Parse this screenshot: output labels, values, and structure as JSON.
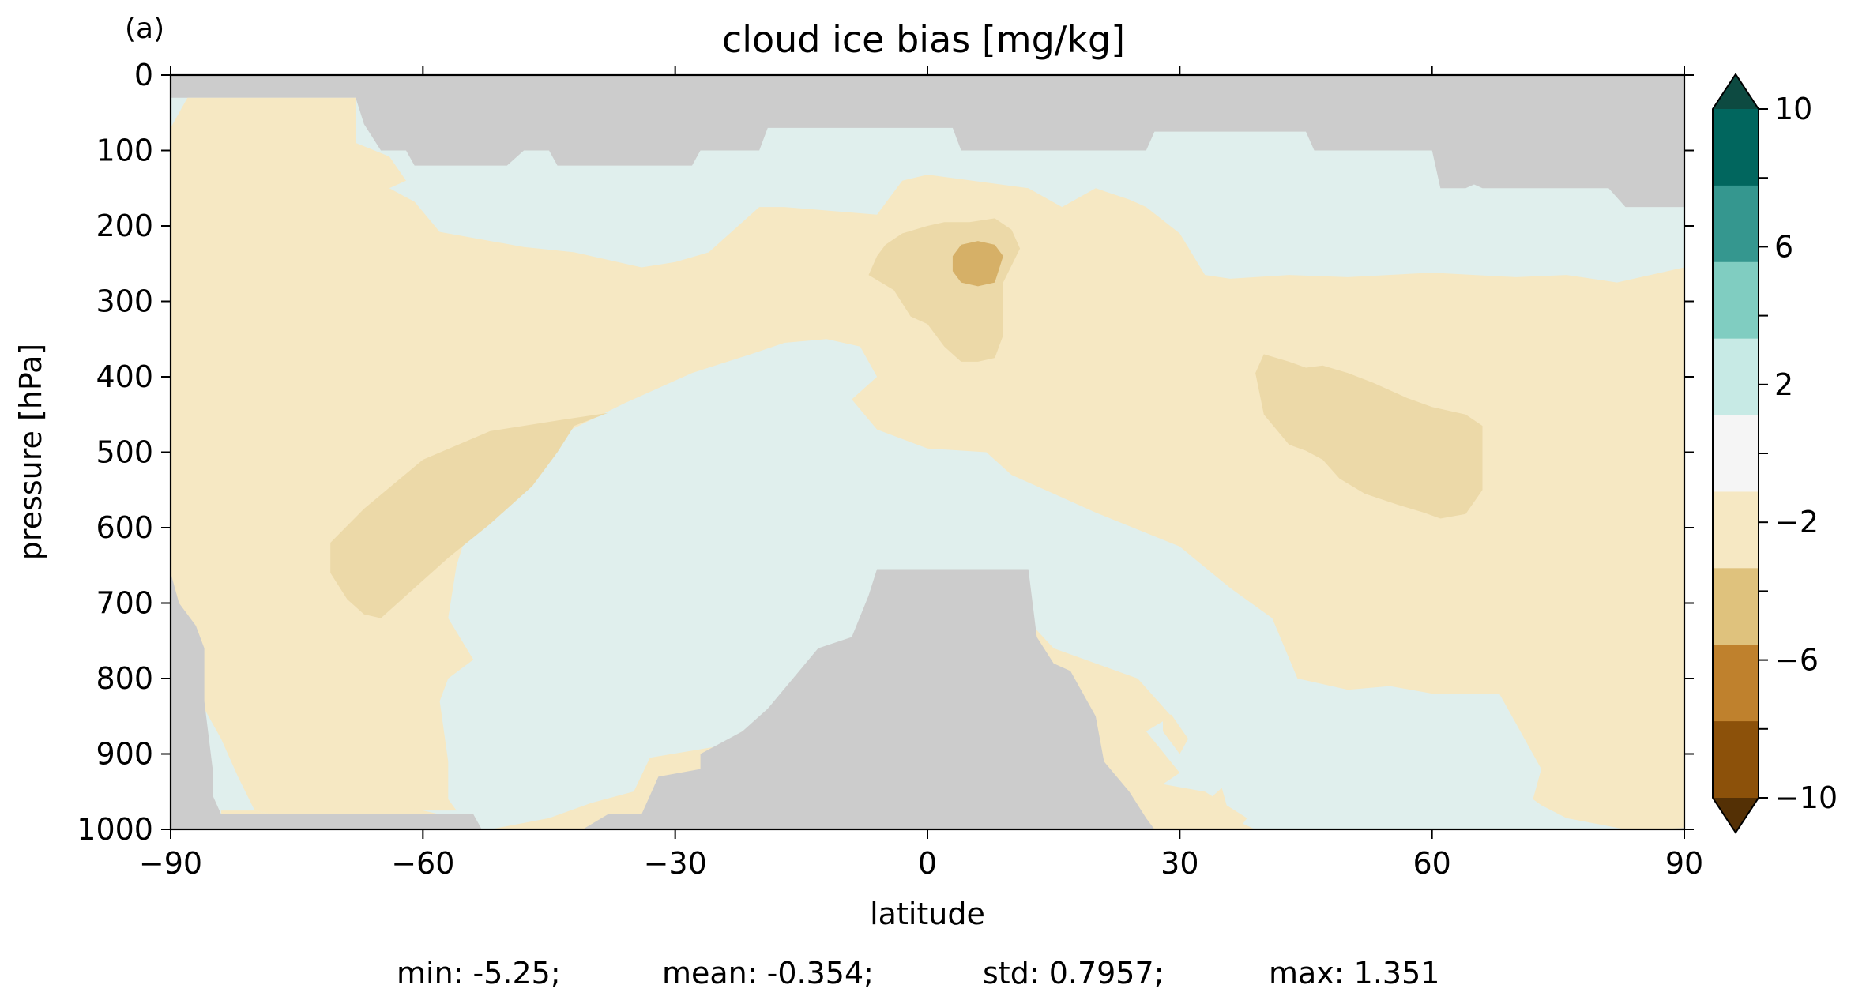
{
  "panel_label": "(a)",
  "chart_data": {
    "type": "contourf",
    "title": "cloud ice bias [mg/kg]",
    "xlabel": "latitude",
    "ylabel": "pressure [hPa]",
    "xlim": [
      -90,
      90
    ],
    "ylim": [
      1000,
      0
    ],
    "x_ticks": [
      "−90",
      "−60",
      "−30",
      "0",
      "30",
      "60",
      "90"
    ],
    "y_ticks": [
      "0",
      "100",
      "200",
      "300",
      "400",
      "500",
      "600",
      "700",
      "800",
      "900",
      "1000"
    ],
    "colorbar": {
      "levels": [
        -10,
        -8,
        -6,
        -4,
        -2,
        0,
        2,
        4,
        6,
        8,
        10
      ],
      "tick_labels": [
        "10",
        "6",
        "2",
        "−2",
        "−6",
        "−10"
      ],
      "colors_top_to_bottom": [
        "#0d4a41",
        "#01665e",
        "#35978f",
        "#80cdc1",
        "#c7eae5",
        "#f5f5f5",
        "#f6e8c3",
        "#dfc27d",
        "#bf812d",
        "#8c510a",
        "#543005"
      ],
      "extend": "both"
    },
    "missing_color": "#cccccc",
    "regions": [
      {
        "name": "missing-top",
        "color": "#cccccc",
        "points": [
          [
            -90,
            0
          ],
          [
            90,
            0
          ],
          [
            90,
            175
          ],
          [
            83,
            175
          ],
          [
            81,
            150
          ],
          [
            66,
            150
          ],
          [
            65,
            145
          ],
          [
            64,
            150
          ],
          [
            61,
            150
          ],
          [
            60,
            100
          ],
          [
            54,
            100
          ],
          [
            53,
            100
          ],
          [
            46,
            100
          ],
          [
            45,
            75
          ],
          [
            27,
            75
          ],
          [
            26,
            100
          ],
          [
            4,
            100
          ],
          [
            3,
            70
          ],
          [
            -19,
            70
          ],
          [
            -20,
            100
          ],
          [
            -27,
            100
          ],
          [
            -28,
            120
          ],
          [
            -44,
            120
          ],
          [
            -45,
            100
          ],
          [
            -48,
            100
          ],
          [
            -50,
            120
          ],
          [
            -61,
            120
          ],
          [
            -62,
            100
          ],
          [
            -65,
            100
          ],
          [
            -67,
            65
          ],
          [
            -68,
            30
          ],
          [
            -78,
            30
          ],
          [
            -89,
            30
          ],
          [
            -90,
            30
          ]
        ]
      },
      {
        "name": "negative-main",
        "color": "#f6e8c3",
        "points": [
          [
            -90,
            70
          ],
          [
            -88,
            30
          ],
          [
            -68,
            30
          ],
          [
            -68,
            90
          ],
          [
            -64,
            108
          ],
          [
            -62,
            140
          ],
          [
            -64,
            150
          ],
          [
            -61,
            168
          ],
          [
            -58,
            208
          ],
          [
            -48,
            228
          ],
          [
            -42,
            235
          ],
          [
            -34,
            255
          ],
          [
            -30,
            248
          ],
          [
            -26,
            235
          ],
          [
            -24,
            215
          ],
          [
            -20,
            175
          ],
          [
            -17,
            175
          ],
          [
            -6,
            185
          ],
          [
            -3,
            140
          ],
          [
            0,
            132
          ],
          [
            12,
            150
          ],
          [
            16,
            175
          ],
          [
            20,
            150
          ],
          [
            24,
            165
          ],
          [
            26,
            175
          ],
          [
            30,
            210
          ],
          [
            33,
            265
          ],
          [
            36,
            270
          ],
          [
            43,
            265
          ],
          [
            50,
            268
          ],
          [
            60,
            262
          ],
          [
            70,
            268
          ],
          [
            76,
            265
          ],
          [
            82,
            275
          ],
          [
            90,
            255
          ],
          [
            90,
            1000
          ],
          [
            83,
            1000
          ],
          [
            76,
            985
          ],
          [
            73,
            968
          ],
          [
            72,
            960
          ],
          [
            73,
            920
          ],
          [
            70,
            860
          ],
          [
            68,
            820
          ],
          [
            60,
            820
          ],
          [
            55,
            810
          ],
          [
            50,
            815
          ],
          [
            44,
            800
          ],
          [
            41,
            720
          ],
          [
            36,
            680
          ],
          [
            30,
            625
          ],
          [
            20,
            580
          ],
          [
            15,
            555
          ],
          [
            10,
            530
          ],
          [
            7,
            500
          ],
          [
            0,
            495
          ],
          [
            -6,
            470
          ],
          [
            -9,
            430
          ],
          [
            -6,
            400
          ],
          [
            -8,
            360
          ],
          [
            -12,
            350
          ],
          [
            -17,
            355
          ],
          [
            -21,
            370
          ],
          [
            -28,
            395
          ],
          [
            -36,
            435
          ],
          [
            -46,
            490
          ],
          [
            -54,
            580
          ],
          [
            -56,
            650
          ],
          [
            -57,
            720
          ],
          [
            -54,
            775
          ],
          [
            -57,
            800
          ],
          [
            -58,
            830
          ],
          [
            -57,
            910
          ],
          [
            -57,
            960
          ],
          [
            -56,
            975
          ],
          [
            -63,
            975
          ],
          [
            -72,
            980
          ],
          [
            -76,
            985
          ],
          [
            -80,
            975
          ],
          [
            -82,
            930
          ],
          [
            -84,
            880
          ],
          [
            -86,
            840
          ],
          [
            -88,
            720
          ],
          [
            -90,
            700
          ]
        ]
      },
      {
        "name": "negative-bottom-edge",
        "color": "#f6e8c3",
        "points": [
          [
            -84,
            975
          ],
          [
            -80,
            975
          ],
          [
            -76,
            985
          ],
          [
            -72,
            1000
          ],
          [
            -84,
            1000
          ]
        ]
      },
      {
        "name": "negative-lower-mid",
        "color": "#f6e8c3",
        "points": [
          [
            -52,
            1000
          ],
          [
            -45,
            985
          ],
          [
            -40,
            965
          ],
          [
            -35,
            950
          ],
          [
            -30,
            940
          ],
          [
            -25,
            900
          ],
          [
            -22,
            905
          ],
          [
            -21,
            870
          ],
          [
            -19,
            850
          ],
          [
            -15,
            900
          ],
          [
            -10,
            870
          ],
          [
            -8,
            850
          ],
          [
            -1,
            840
          ],
          [
            0,
            700
          ],
          [
            10,
            700
          ],
          [
            15,
            760
          ],
          [
            20,
            780
          ],
          [
            25,
            800
          ],
          [
            29,
            850
          ],
          [
            26,
            870
          ],
          [
            30,
            925
          ],
          [
            28,
            940
          ],
          [
            33,
            950
          ],
          [
            38,
            985
          ],
          [
            37,
            1000
          ],
          [
            -40,
            1000
          ]
        ]
      },
      {
        "name": "negative-lower-right",
        "color": "#f6e8c3",
        "points": [
          [
            33,
            1000
          ],
          [
            34,
            955
          ],
          [
            35,
            945
          ],
          [
            36,
            985
          ],
          [
            39,
            1000
          ]
        ]
      },
      {
        "name": "negative-small-blob",
        "color": "#f6e8c3",
        "points": [
          [
            28,
            848
          ],
          [
            29,
            848
          ],
          [
            31,
            880
          ],
          [
            30,
            900
          ],
          [
            28,
            870
          ]
        ]
      },
      {
        "name": "negative-bottom-left-2",
        "color": "#f6e8c3",
        "points": [
          [
            -75,
            865
          ],
          [
            -71,
            880
          ],
          [
            -72,
            930
          ],
          [
            -69,
            950
          ],
          [
            -60,
            975
          ],
          [
            -56,
            985
          ],
          [
            -62,
            1000
          ],
          [
            -75,
            1000
          ],
          [
            -76,
            960
          ],
          [
            -77,
            900
          ]
        ]
      },
      {
        "name": "negative-equatorial-lower",
        "color": "#f6e8c3",
        "points": [
          [
            -33,
            905
          ],
          [
            -25,
            890
          ],
          [
            -22,
            870
          ],
          [
            -18,
            860
          ],
          [
            -20,
            910
          ],
          [
            -26,
            960
          ],
          [
            -32,
            1000
          ],
          [
            -35,
            1000
          ],
          [
            -36,
            975
          ]
        ]
      },
      {
        "name": "neg2-southern",
        "color": "#ecd9a8",
        "points": [
          [
            -71,
            620
          ],
          [
            -67,
            575
          ],
          [
            -60,
            510
          ],
          [
            -52,
            472
          ],
          [
            -44,
            458
          ],
          [
            -38,
            448
          ],
          [
            -42,
            465
          ],
          [
            -44,
            500
          ],
          [
            -47,
            545
          ],
          [
            -52,
            595
          ],
          [
            -57,
            640
          ],
          [
            -61,
            680
          ],
          [
            -65,
            720
          ],
          [
            -67,
            715
          ],
          [
            -69,
            695
          ],
          [
            -71,
            660
          ]
        ]
      },
      {
        "name": "neg2-equatorial",
        "color": "#ecd9a8",
        "points": [
          [
            -5,
            225
          ],
          [
            -3,
            210
          ],
          [
            0,
            200
          ],
          [
            2,
            195
          ],
          [
            5,
            195
          ],
          [
            8,
            190
          ],
          [
            10,
            205
          ],
          [
            11,
            230
          ],
          [
            9,
            275
          ],
          [
            9,
            345
          ],
          [
            8,
            375
          ],
          [
            6,
            380
          ],
          [
            4,
            380
          ],
          [
            2,
            360
          ],
          [
            0,
            330
          ],
          [
            -2,
            320
          ],
          [
            -4,
            285
          ],
          [
            -7,
            265
          ],
          [
            -6,
            240
          ]
        ]
      },
      {
        "name": "neg2-northern",
        "color": "#ecd9a8",
        "points": [
          [
            39,
            395
          ],
          [
            40,
            370
          ],
          [
            43,
            380
          ],
          [
            45,
            388
          ],
          [
            47,
            385
          ],
          [
            50,
            395
          ],
          [
            53,
            408
          ],
          [
            57,
            428
          ],
          [
            60,
            440
          ],
          [
            64,
            450
          ],
          [
            66,
            465
          ],
          [
            66,
            550
          ],
          [
            64,
            582
          ],
          [
            61,
            588
          ],
          [
            59,
            580
          ],
          [
            56,
            570
          ],
          [
            52,
            555
          ],
          [
            49,
            535
          ],
          [
            47,
            510
          ],
          [
            45,
            498
          ],
          [
            43,
            490
          ],
          [
            40,
            450
          ]
        ]
      },
      {
        "name": "neg4-equatorial",
        "color": "#d6b067",
        "points": [
          [
            3,
            240
          ],
          [
            4,
            225
          ],
          [
            6,
            220
          ],
          [
            8,
            225
          ],
          [
            9,
            240
          ],
          [
            8,
            275
          ],
          [
            6,
            280
          ],
          [
            4,
            275
          ],
          [
            3,
            260
          ]
        ]
      },
      {
        "name": "neg-stray-blob",
        "color": "#f6e8c3",
        "points": [
          [
            -34,
            405
          ],
          [
            -33,
            400
          ],
          [
            -32,
            405
          ],
          [
            -33,
            410
          ]
        ]
      },
      {
        "name": "missing-bottom-left",
        "color": "#cccccc",
        "points": [
          [
            -90,
            660
          ],
          [
            -89,
            700
          ],
          [
            -87,
            730
          ],
          [
            -86,
            760
          ],
          [
            -86,
            790
          ],
          [
            -86,
            830
          ],
          [
            -85,
            920
          ],
          [
            -85,
            935
          ],
          [
            -85,
            955
          ],
          [
            -84,
            980
          ],
          [
            -54,
            980
          ],
          [
            -53,
            1000
          ],
          [
            -90,
            1000
          ]
        ]
      },
      {
        "name": "missing-bottom-center",
        "color": "#cccccc",
        "points": [
          [
            -41,
            1000
          ],
          [
            -38,
            980
          ],
          [
            -34,
            980
          ],
          [
            -32,
            930
          ],
          [
            -27,
            920
          ],
          [
            -27,
            900
          ],
          [
            -22,
            870
          ],
          [
            -20,
            850
          ],
          [
            -19,
            840
          ],
          [
            -16,
            800
          ],
          [
            -13,
            760
          ],
          [
            -9,
            745
          ],
          [
            -7,
            690
          ],
          [
            -6,
            655
          ],
          [
            12,
            655
          ],
          [
            13,
            745
          ],
          [
            15,
            780
          ],
          [
            17,
            790
          ],
          [
            20,
            850
          ],
          [
            21,
            910
          ],
          [
            24,
            950
          ],
          [
            26,
            985
          ],
          [
            27,
            1000
          ]
        ]
      },
      {
        "name": "missing-bottom-right-strip",
        "color": "#cccccc",
        "points": [
          [
            87,
            1000
          ],
          [
            90,
            1000
          ],
          [
            90,
            998
          ]
        ]
      }
    ]
  },
  "stats": {
    "min": "min: -5.25;",
    "mean": "mean: -0.354;",
    "std": "std: 0.7957;",
    "max": "max: 1.351"
  }
}
